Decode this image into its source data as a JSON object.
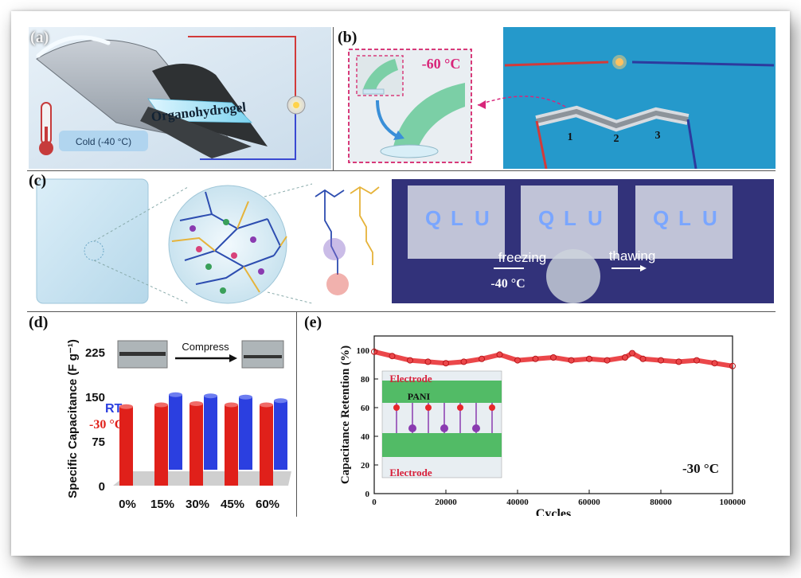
{
  "panels": {
    "a": {
      "label": "(a)",
      "material": "Organohydrogel",
      "condition": "Cold (-40 °C)"
    },
    "b": {
      "label": "(b)",
      "temperature": "-60 °C",
      "device_numbers": [
        "1",
        "2",
        "3"
      ]
    },
    "c": {
      "label": "(c)",
      "led_letters": [
        "Q",
        "L",
        "U"
      ],
      "freezing": "freezing",
      "thawing": "thawing",
      "temperature": "-40 °C"
    },
    "d": {
      "label": "(d)",
      "compress": "Compress",
      "legend_rt": "RT",
      "legend_cold": "-30 °C"
    },
    "e": {
      "label": "(e)",
      "inset_top": "Electrode",
      "inset_mid": "PANI",
      "inset_bottom": "Electrode",
      "temperature": "-30 °C"
    }
  },
  "chart_data": [
    {
      "panel": "d",
      "type": "bar",
      "ylabel": "Specific Capacitance (F g⁻¹)",
      "categories": [
        "0%",
        "15%",
        "30%",
        "45%",
        "60%"
      ],
      "ylim": [
        0,
        225
      ],
      "yticks": [
        "0",
        "75",
        "150",
        "225"
      ],
      "series": [
        {
          "name": "RT",
          "color": "#2b3fe0",
          "values": [
            null,
            153,
            151,
            149,
            143
          ]
        },
        {
          "name": "-30 °C",
          "color": "#e0201a",
          "values": [
            133,
            136,
            138,
            136,
            136
          ]
        }
      ]
    },
    {
      "panel": "e",
      "type": "scatter",
      "xlabel": "Cycles",
      "ylabel": "Capacitance Retention (%)",
      "xlim": [
        0,
        100000
      ],
      "ylim": [
        0,
        110
      ],
      "xticks": [
        "0",
        "20000",
        "40000",
        "60000",
        "80000",
        "100000"
      ],
      "yticks": [
        "0",
        "20",
        "40",
        "60",
        "80",
        "100"
      ],
      "color": "#e8272a",
      "series": [
        {
          "x": [
            0,
            5000,
            10000,
            15000,
            20000,
            25000,
            30000,
            35000,
            40000,
            45000,
            50000,
            55000,
            60000,
            65000,
            70000,
            72000,
            75000,
            80000,
            85000,
            90000,
            95000,
            100000
          ],
          "y": [
            99,
            96,
            93,
            92,
            91,
            92,
            94,
            97,
            93,
            94,
            95,
            93,
            94,
            93,
            95,
            98,
            94,
            93,
            92,
            93,
            91,
            89
          ]
        }
      ]
    }
  ]
}
